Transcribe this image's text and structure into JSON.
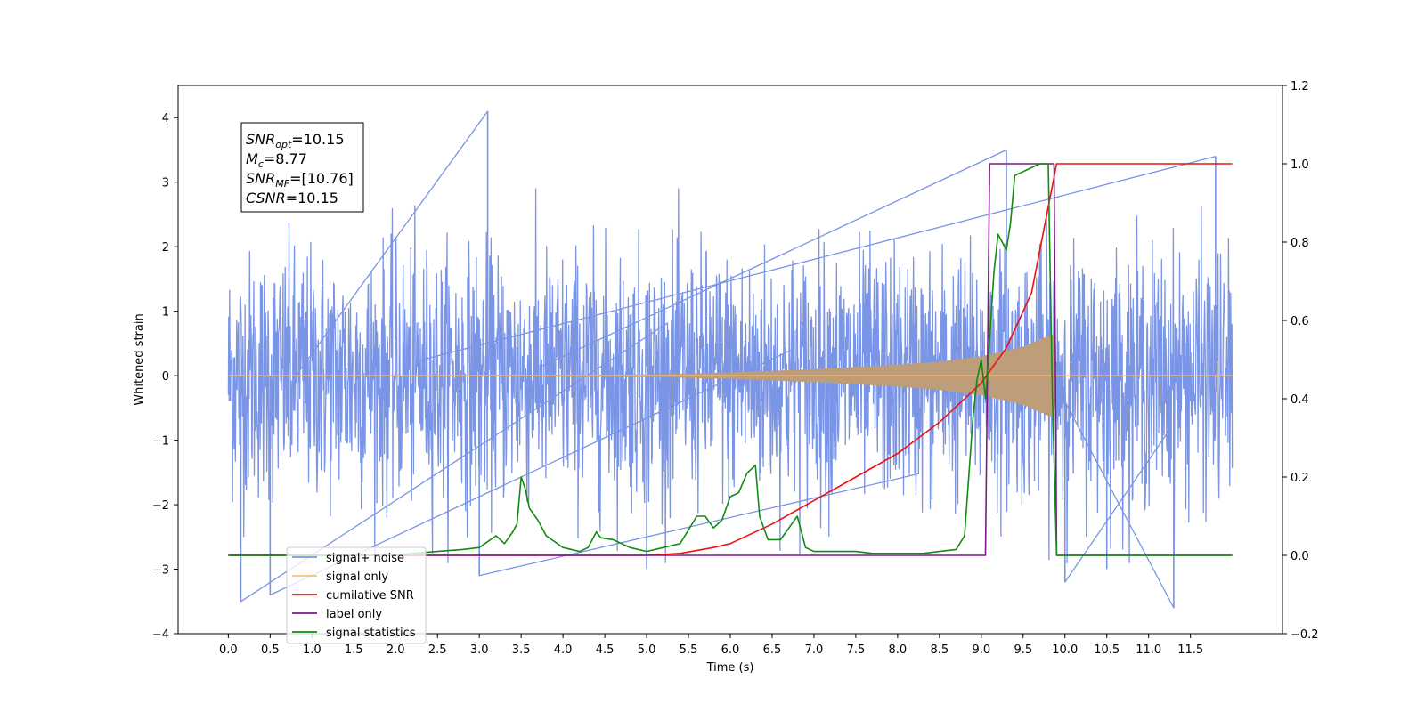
{
  "chart_data": {
    "type": "line",
    "title": "",
    "xlabel": "Time (s)",
    "ylabel": "Whitened strain",
    "y2label": "",
    "xlim": [
      -0.6,
      12.6
    ],
    "ylim": [
      -4,
      4.5
    ],
    "y2lim": [
      -0.2,
      1.2
    ],
    "xticks": [
      "0.0",
      "0.5",
      "1.0",
      "1.5",
      "2.0",
      "2.5",
      "3.0",
      "3.5",
      "4.0",
      "4.5",
      "5.0",
      "5.5",
      "6.0",
      "6.5",
      "7.0",
      "7.5",
      "8.0",
      "8.5",
      "9.0",
      "9.5",
      "10.0",
      "10.5",
      "11.0",
      "11.5"
    ],
    "yticks": [
      "4",
      "3",
      "2",
      "1",
      "0",
      "−1",
      "−2",
      "−3",
      "−4"
    ],
    "y2ticks": [
      "1.2",
      "1.0",
      "0.8",
      "0.6",
      "0.4",
      "0.2",
      "0.0",
      "−0.2"
    ],
    "grid": false,
    "legend_position": "lower-left",
    "annotation": {
      "lines": [
        {
          "base": "SNR",
          "sub": "opt",
          "rest": "=10.15"
        },
        {
          "base": "M",
          "sub": "c",
          "rest": "=8.77"
        },
        {
          "base": "SNR",
          "sub": "MF",
          "rest": "=[10.76]"
        },
        {
          "base": "CSNR",
          "sub": "",
          "rest": "=10.15"
        }
      ]
    },
    "series": [
      {
        "name": "signal+ noise",
        "color": "#7a94e6",
        "axis": "left",
        "description_values": {
          "noise_std": 0.95,
          "spikes": [
            [
              3.1,
              4.1
            ],
            [
              11.8,
              3.4
            ],
            [
              9.3,
              3.5
            ],
            [
              0.15,
              -3.5
            ],
            [
              0.5,
              -3.4
            ],
            [
              3.0,
              -3.1
            ],
            [
              11.3,
              -3.6
            ],
            [
              10.0,
              -3.2
            ],
            [
              10.5,
              -3.0
            ],
            [
              5.0,
              -3.0
            ]
          ]
        }
      },
      {
        "name": "signal only",
        "color": "#f5c07a",
        "axis": "left",
        "envelope": [
          [
            0.0,
            0.0
          ],
          [
            5.0,
            0.02
          ],
          [
            6.0,
            0.05
          ],
          [
            7.0,
            0.1
          ],
          [
            8.0,
            0.17
          ],
          [
            8.5,
            0.22
          ],
          [
            9.0,
            0.3
          ],
          [
            9.5,
            0.45
          ],
          [
            9.8,
            0.62
          ],
          [
            9.87,
            0.65
          ],
          [
            9.9,
            0.0
          ],
          [
            12.0,
            0.0
          ]
        ]
      },
      {
        "name": "cumilative SNR",
        "color": "#ee1111",
        "axis": "right",
        "x": [
          0.0,
          5.0,
          5.4,
          5.8,
          6.0,
          6.5,
          7.0,
          7.5,
          8.0,
          8.5,
          9.0,
          9.3,
          9.6,
          9.9,
          12.0
        ],
        "y": [
          0.0,
          0.0,
          0.005,
          0.02,
          0.03,
          0.08,
          0.14,
          0.2,
          0.26,
          0.34,
          0.44,
          0.53,
          0.67,
          1.0,
          1.0
        ]
      },
      {
        "name": "label only",
        "color": "#7b1a86",
        "axis": "right",
        "x": [
          0.0,
          9.05,
          9.1,
          9.87,
          9.9,
          12.0
        ],
        "y": [
          0.0,
          0.0,
          1.0,
          1.0,
          0.0,
          0.0
        ]
      },
      {
        "name": "signal statistics",
        "color": "#138a13",
        "axis": "right",
        "x": [
          0.0,
          2.0,
          2.2,
          2.5,
          2.8,
          3.0,
          3.2,
          3.3,
          3.4,
          3.45,
          3.5,
          3.55,
          3.6,
          3.7,
          3.8,
          4.0,
          4.2,
          4.3,
          4.4,
          4.45,
          4.6,
          4.8,
          5.0,
          5.2,
          5.4,
          5.6,
          5.7,
          5.8,
          5.9,
          6.0,
          6.1,
          6.2,
          6.3,
          6.35,
          6.45,
          6.6,
          6.8,
          6.9,
          7.0,
          7.1,
          7.3,
          7.5,
          7.7,
          7.9,
          8.1,
          8.3,
          8.5,
          8.7,
          8.8,
          8.9,
          8.95,
          9.0,
          9.05,
          9.1,
          9.15,
          9.2,
          9.3,
          9.35,
          9.4,
          9.5,
          9.6,
          9.7,
          9.8,
          9.85,
          9.9,
          12.0
        ],
        "y": [
          0.0,
          0.0,
          0.005,
          0.01,
          0.015,
          0.02,
          0.05,
          0.03,
          0.06,
          0.08,
          0.2,
          0.17,
          0.12,
          0.09,
          0.05,
          0.02,
          0.01,
          0.02,
          0.06,
          0.045,
          0.04,
          0.02,
          0.01,
          0.02,
          0.03,
          0.1,
          0.1,
          0.07,
          0.09,
          0.15,
          0.16,
          0.21,
          0.23,
          0.1,
          0.04,
          0.04,
          0.1,
          0.02,
          0.01,
          0.01,
          0.01,
          0.01,
          0.005,
          0.005,
          0.005,
          0.005,
          0.01,
          0.015,
          0.05,
          0.35,
          0.45,
          0.5,
          0.4,
          0.55,
          0.72,
          0.82,
          0.78,
          0.85,
          0.97,
          0.98,
          0.99,
          1.0,
          1.0,
          0.4,
          0.0,
          0.0
        ]
      }
    ]
  }
}
